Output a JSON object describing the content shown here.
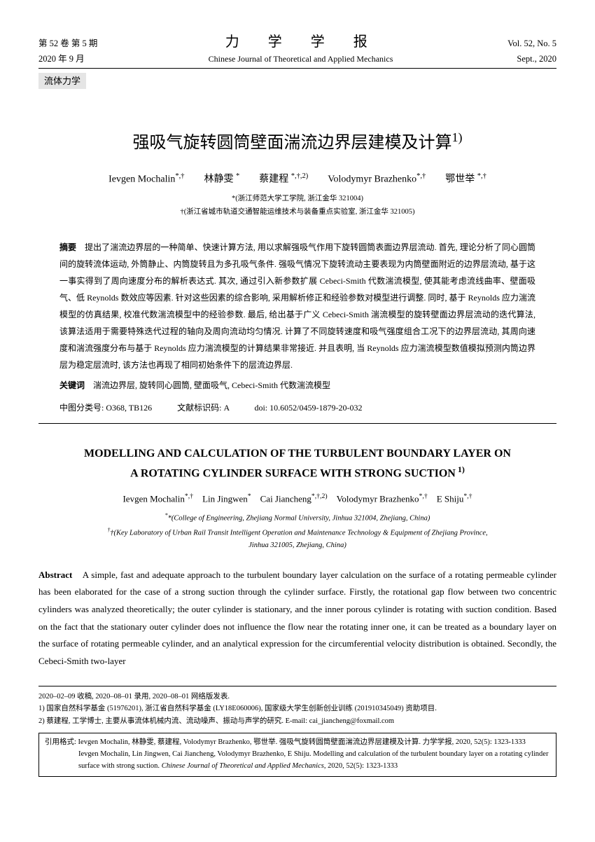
{
  "header": {
    "vol_issue_cn": "第 52 卷 第 5 期",
    "journal_cn": "力 学 学 报",
    "vol_issue_en": "Vol. 52, No. 5",
    "date_cn": "2020 年 9 月",
    "journal_en": "Chinese Journal of Theoretical and Applied Mechanics",
    "date_en": "Sept., 2020"
  },
  "category_tag": "流体力学",
  "title_cn": "强吸气旋转圆筒壁面湍流边界层建模及计算",
  "title_cn_sup": "1)",
  "authors_cn_html": "Ievgen Mochalin<sup>*,†</sup>　　林静雯 <sup>*</sup>　　蔡建程 <sup>*,†,2)</sup>　　Volodymyr Brazhenko<sup>*,†</sup>　　鄂世举 <sup>*,†</sup>",
  "affil1_cn": "*(浙江师范大学工学院, 浙江金华 321004)",
  "affil2_cn": "†(浙江省城市轨道交通智能运维技术与装备重点实验室, 浙江金华 321005)",
  "abstract_label_cn": "摘要",
  "abstract_cn": "　提出了湍流边界层的一种简单、快速计算方法, 用以求解强吸气作用下旋转圆筒表面边界层流动. 首先, 理论分析了同心圆筒间的旋转流体运动, 外筒静止、内筒旋转且为多孔吸气条件. 强吸气情况下旋转流动主要表现为内筒壁面附近的边界层流动, 基于这一事实得到了周向速度分布的解析表达式. 其次, 通过引入新参数扩展 Cebeci-Smith 代数湍流模型, 使其能考虑流线曲率、壁面吸气、低 Reynolds 数效应等因素. 针对这些因素的综合影响, 采用解析修正和经验参数对模型进行调整. 同时, 基于 Reynolds 应力湍流模型的仿真结果, 校准代数湍流模型中的经验参数. 最后, 给出基于广义 Cebeci-Smith 湍流模型的旋转壁面边界层流动的迭代算法, 该算法适用于需要特殊迭代过程的轴向及周向流动均匀情况. 计算了不同旋转速度和吸气强度组合工况下的边界层流动, 其周向速度和湍流强度分布与基于 Reynolds 应力湍流模型的计算结果非常接近. 并且表明, 当 Reynolds 应力湍流模型数值模拟预测内筒边界层为稳定层流时, 该方法也再现了相同初始条件下的层流边界层.",
  "keywords_label_cn": "关键词",
  "keywords_cn": "　湍流边界层, 旋转同心圆筒, 壁面吸气, Cebeci-Smith 代数湍流模型",
  "classif_cn": "中图分类号: O368, TB126　　　文献标识码: A　　　doi: 10.6052/0459-1879-20-032",
  "title_en_line1": "MODELLING AND CALCULATION OF THE TURBULENT BOUNDARY LAYER ON",
  "title_en_line2": "A ROTATING CYLINDER SURFACE WITH STRONG SUCTION",
  "title_en_sup": " 1)",
  "authors_en_html": "Ievgen Mochalin<sup>*,†</sup>　Lin Jingwen<sup>*</sup>　Cai Jiancheng<sup>*,†,2)</sup>　Volodymyr Brazhenko<sup>*,†</sup>　E Shiju<sup>*,†</sup>",
  "affil1_en": "*(College of Engineering, Zhejiang Normal University, Jinhua 321004, Zhejiang, China)",
  "affil2_en": "†(Key Laboratory of Urban Rail Transit Intelligent Operation and Maintenance Technology & Equipment of Zhejiang Province,",
  "affil3_en": "Jinhua 321005, Zhejiang, China)",
  "abstract_label_en": "Abstract",
  "abstract_en": "　A simple, fast and adequate approach to the turbulent boundary layer calculation on the surface of a rotating permeable cylinder has been elaborated for the case of a strong suction through the cylinder surface. Firstly, the rotational gap flow between two concentric cylinders was analyzed theoretically; the outer cylinder is stationary, and the inner porous cylinder is rotating with suction condition. Based on the fact that the stationary outer cylinder does not influence the flow near the rotating inner one, it can be treated as a boundary layer on the surface of rotating permeable cylinder, and an analytical expression for the circumferential velocity distribution is obtained. Secondly, the Cebeci-Smith two-layer",
  "footnote1": "2020–02–09 收稿, 2020–08–01 录用, 2020–08–01 网络版发表.",
  "footnote2": "1) 国家自然科学基金 (51976201), 浙江省自然科学基金 (LY18E060006), 国家级大学生创新创业训练 (201910345049) 资助项目.",
  "footnote3": "2) 蔡建程, 工学博士, 主要从事流体机械内流、流动噪声、振动与声学的研究. E-mail: cai_jiancheng@foxmail.com",
  "citation_label": "引用格式: ",
  "citation_cn": "Ievgen Mochalin, 林静雯, 蔡建程, Volodymyr Brazhenko, 鄂世举. 强吸气旋转圆筒壁面湍流边界层建模及计算. 力学学报, 2020, 52(5): 1323-1333",
  "citation_en": "Ievgen Mochalin, Lin Jingwen, Cai Jiancheng, Volodymyr Brazhenko, E Shiju. Modelling and calculation of the turbulent boundary layer on a rotating cylinder surface with strong suction. Chinese Journal of Theoretical and Applied Mechanics, 2020, 52(5): 1323-1333"
}
